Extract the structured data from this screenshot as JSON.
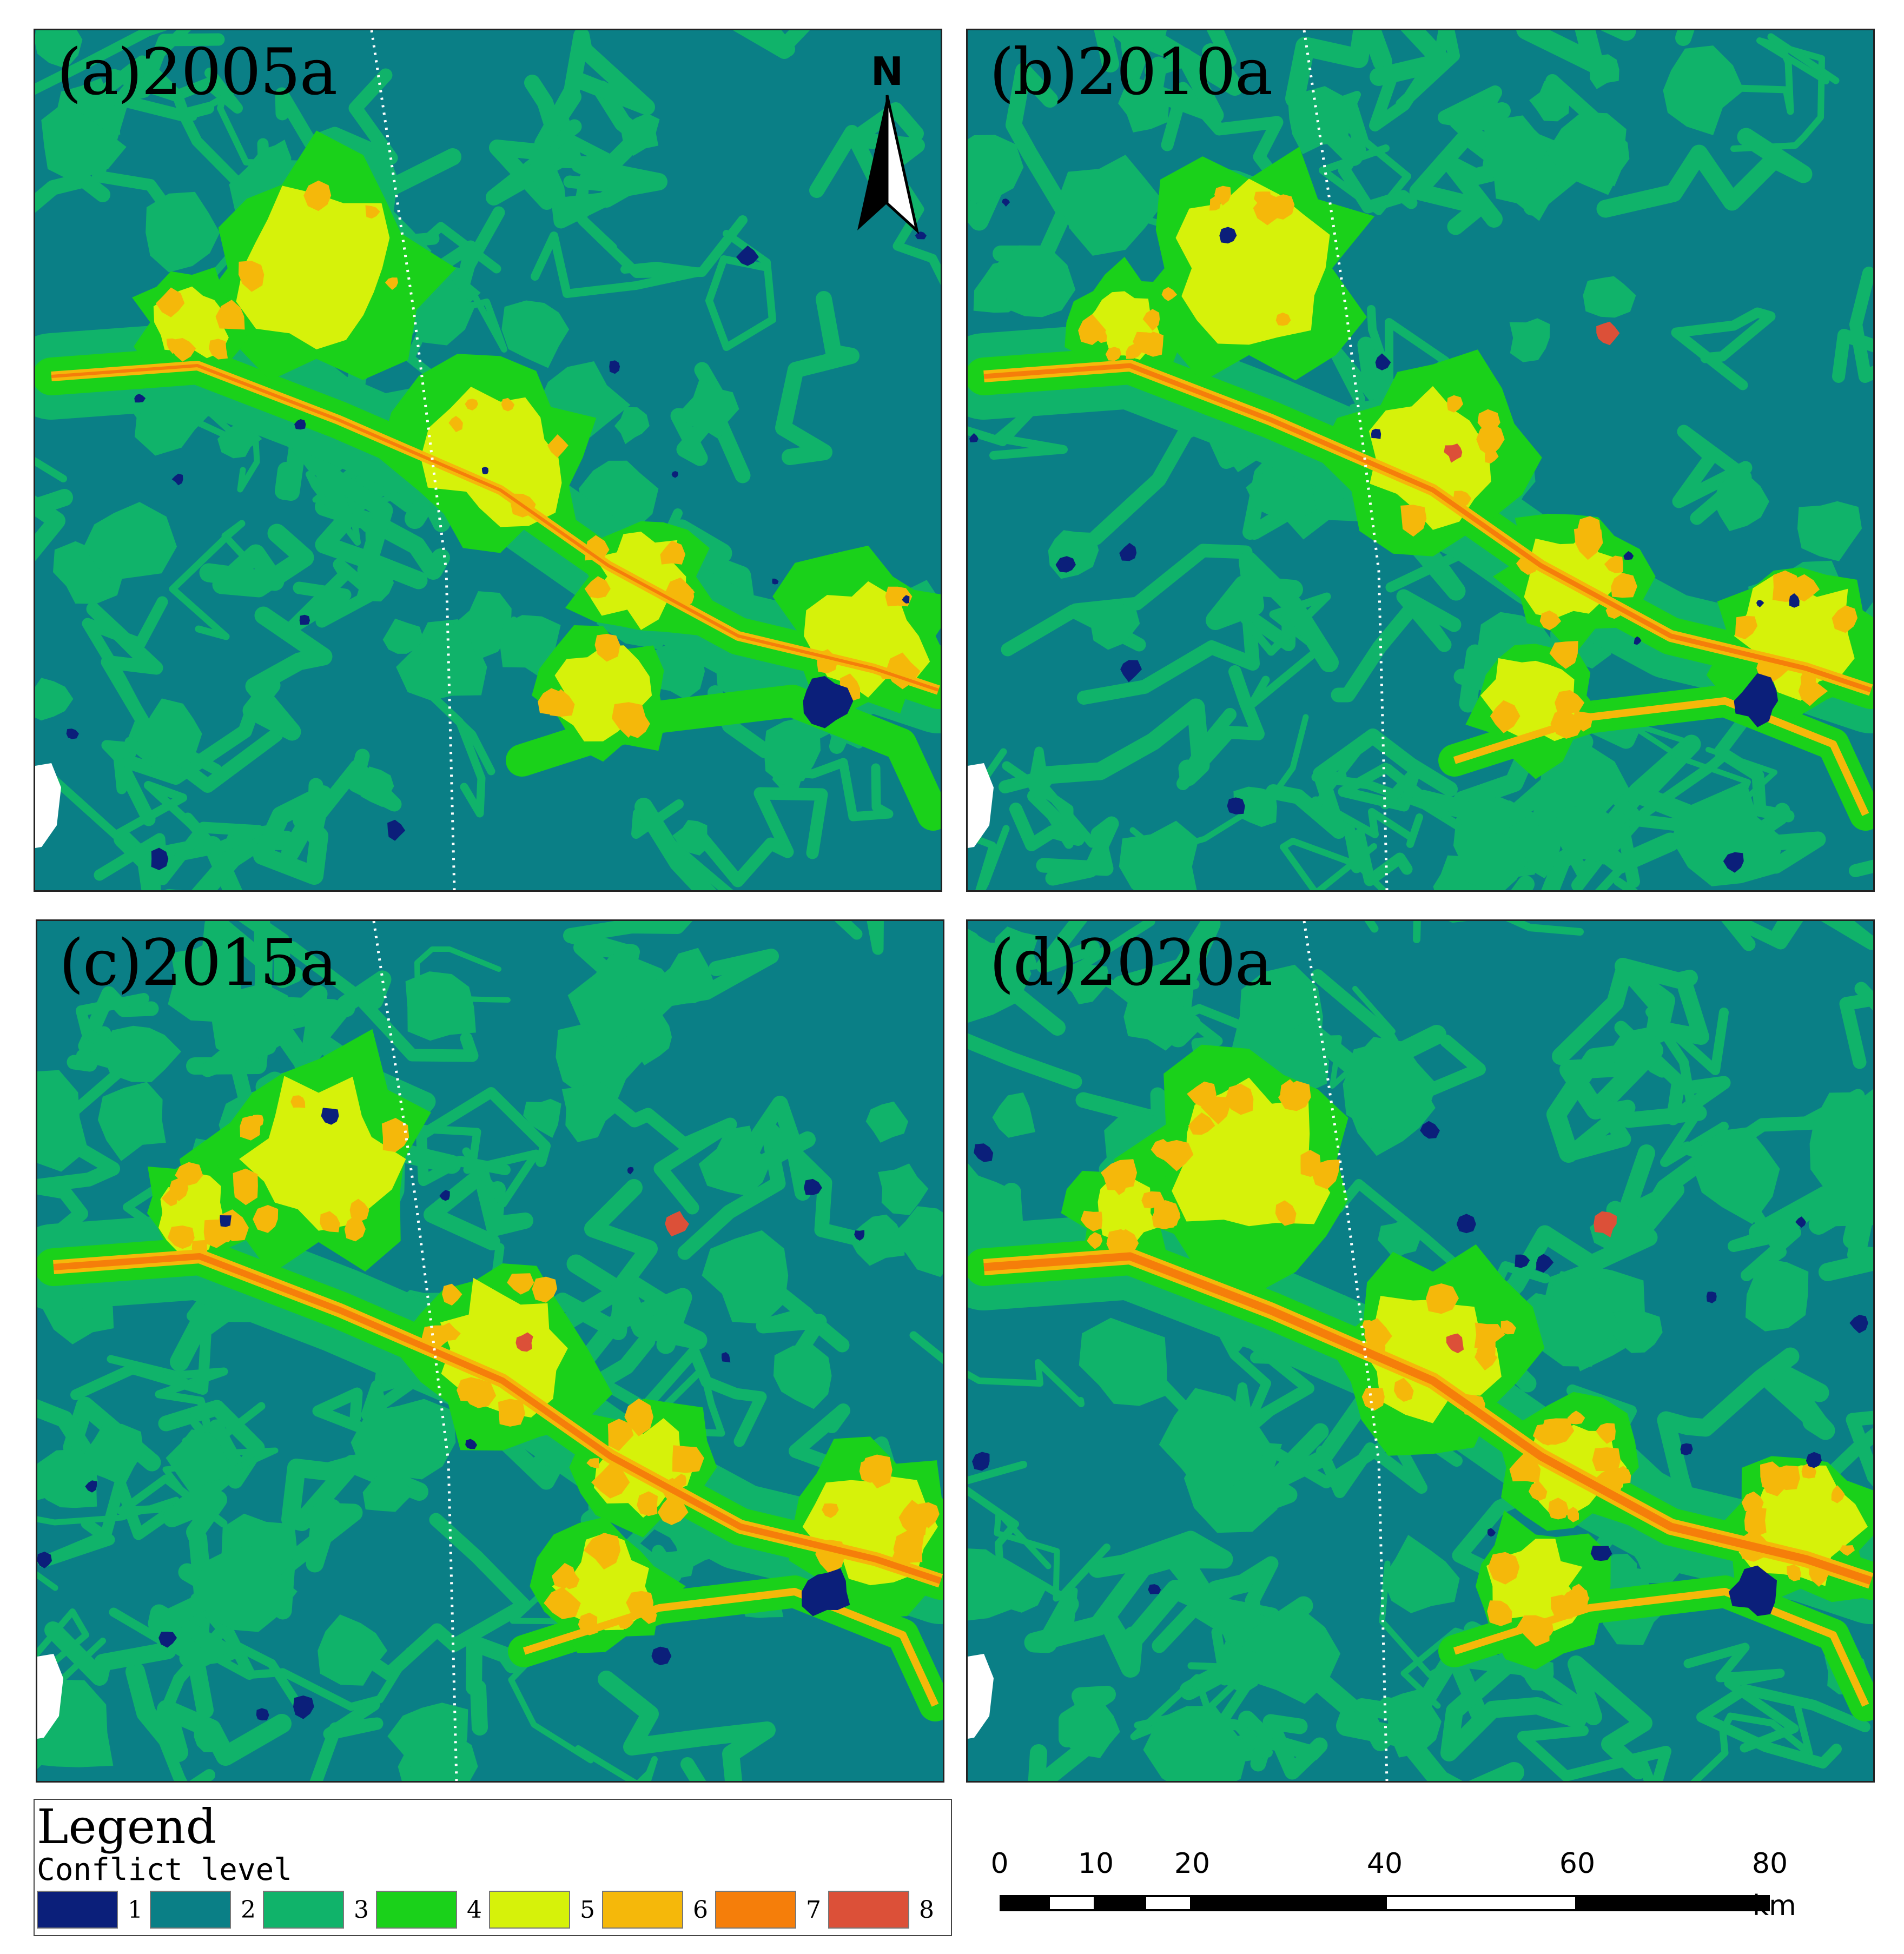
{
  "panels": [
    {
      "id": "a",
      "label": "(a)2005a"
    },
    {
      "id": "b",
      "label": "(b)2010a"
    },
    {
      "id": "c",
      "label": "(c)2015a"
    },
    {
      "id": "d",
      "label": "(d)2020a"
    }
  ],
  "north_arrow": {
    "letter": "N"
  },
  "legend": {
    "title": "Legend",
    "subtitle": "Conflict level",
    "levels": [
      {
        "label": "1",
        "color": "#0b1f7a"
      },
      {
        "label": "2",
        "color": "#0a7f86"
      },
      {
        "label": "3",
        "color": "#10b36a"
      },
      {
        "label": "4",
        "color": "#1ad11a"
      },
      {
        "label": "5",
        "color": "#d6f20a"
      },
      {
        "label": "6",
        "color": "#f5b80a"
      },
      {
        "label": "7",
        "color": "#f57e0a"
      },
      {
        "label": "8",
        "color": "#dc5038"
      }
    ]
  },
  "scale_bar": {
    "ticks": [
      "0",
      "10",
      "20",
      "40",
      "60",
      "80"
    ],
    "unit": "km"
  }
}
